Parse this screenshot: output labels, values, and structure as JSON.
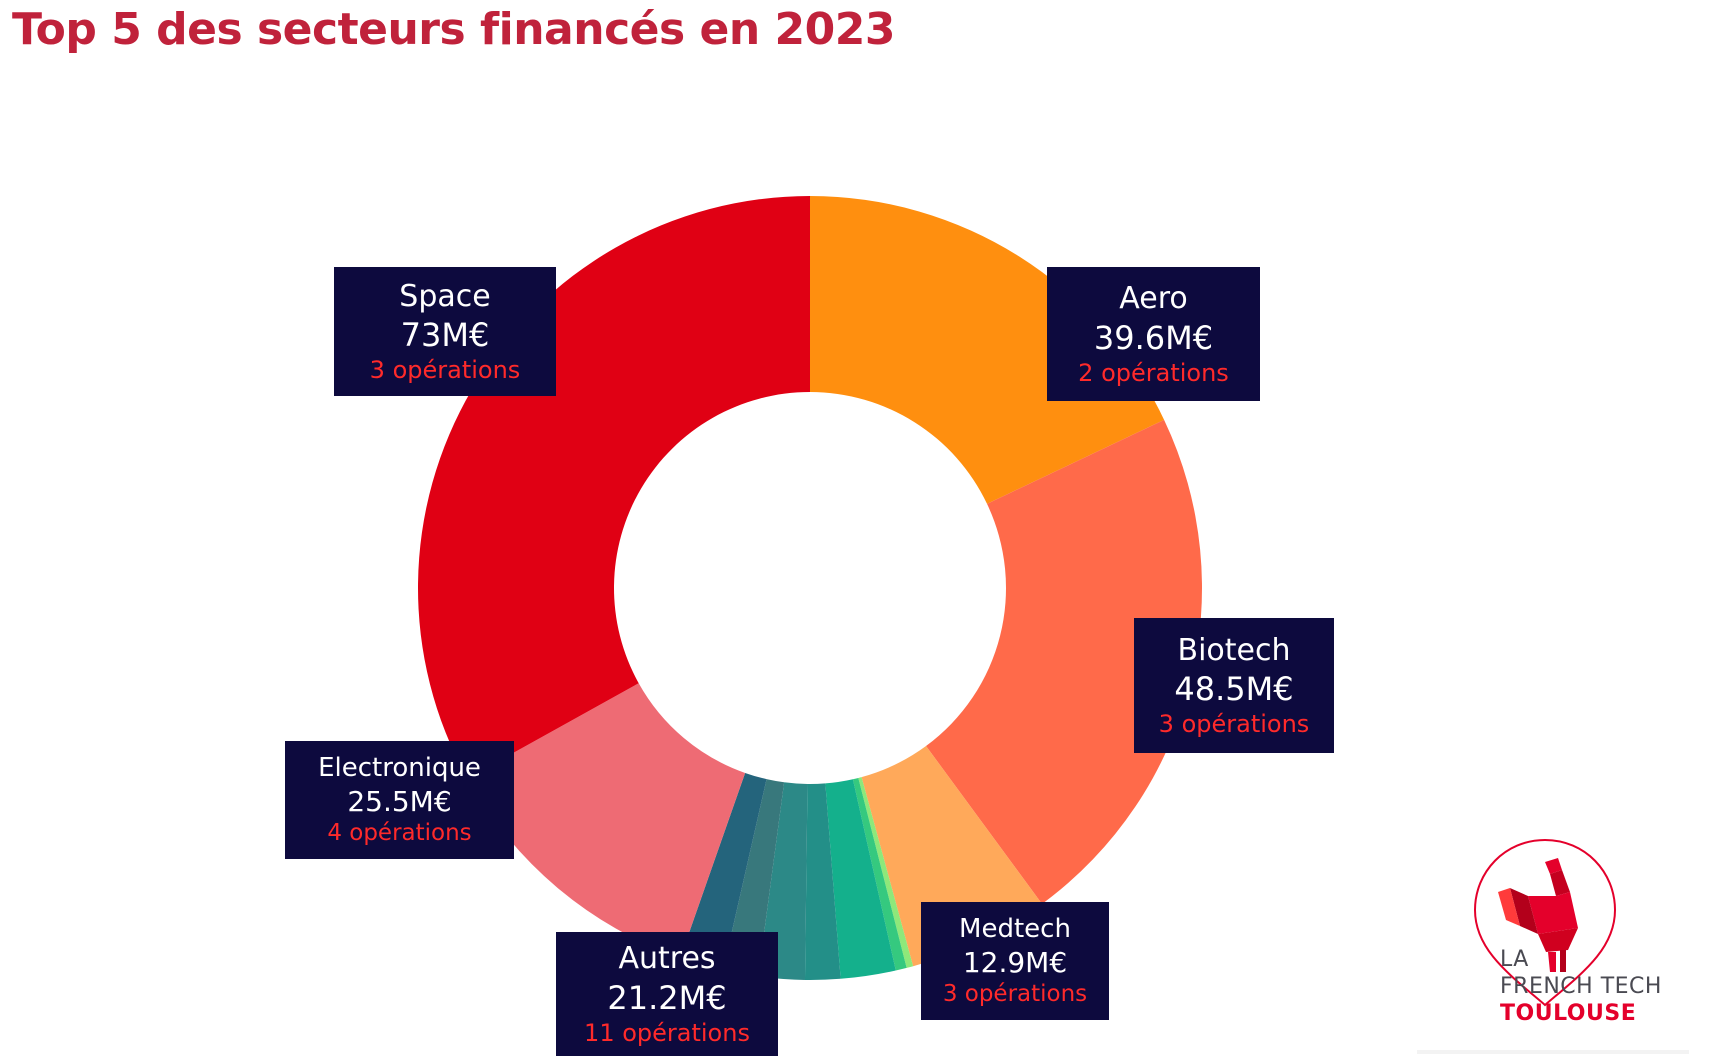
{
  "title": "Top 5 des secteurs financés en 2023",
  "chart_data": {
    "type": "pie",
    "donut": true,
    "title": "Top 5 des secteurs financés en 2023",
    "unit": "M€",
    "slices": [
      {
        "name": "Aero",
        "value": 39.6,
        "value_label": "39.6M€",
        "ops_label": "2  opérations",
        "color": "#ff8f0f"
      },
      {
        "name": "Biotech",
        "value": 48.5,
        "value_label": "48.5M€",
        "ops_label": "3 opérations",
        "color": "#ff6a4a"
      },
      {
        "name": "Medtech",
        "value": 12.9,
        "value_label": "12.9M€",
        "ops_label": "3  opérations",
        "color": "#ffa95a"
      },
      {
        "name": "Autres",
        "value": 21.2,
        "value_label": "21.2M€",
        "ops_label": "11 opérations",
        "color": "#2a8a8a",
        "sub_segments": [
          {
            "value": 0.6,
            "color": "#8ee87a"
          },
          {
            "value": 1.0,
            "color": "#35c97f"
          },
          {
            "value": 5.0,
            "color": "#14b08c"
          },
          {
            "value": 3.2,
            "color": "#238f88"
          },
          {
            "value": 4.2,
            "color": "#2c8987"
          },
          {
            "value": 3.2,
            "color": "#38787c"
          },
          {
            "value": 4.0,
            "color": "#24647c"
          }
        ]
      },
      {
        "name": "Electronique",
        "value": 25.5,
        "value_label": "25.5M€",
        "ops_label": "4  opérations",
        "color": "#ee6b74"
      },
      {
        "name": "Space",
        "value": 73,
        "value_label": "73M€",
        "ops_label": "3 opérations",
        "color": "#e00014"
      }
    ]
  },
  "logo": {
    "line1": "LA",
    "line2": "FRENCH TECH",
    "line3": "TOULOUSE"
  }
}
